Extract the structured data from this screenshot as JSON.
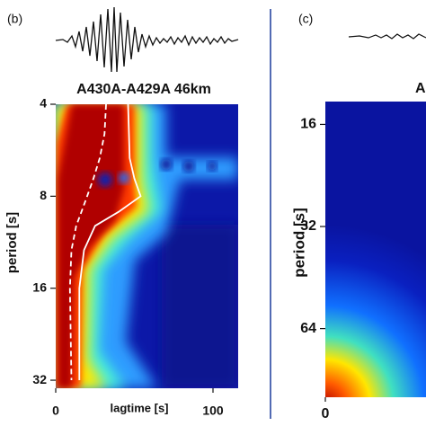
{
  "chart_data": [
    {
      "type": "line",
      "panel_label": "(b)",
      "title": "A430A-A429A 46km",
      "xlabel": "lagtime [s]",
      "ylabel": "period [s]",
      "xlim": [
        0,
        116
      ],
      "xticks": [
        0,
        100
      ],
      "ylim": [
        4,
        34
      ],
      "yticks": [
        4,
        8,
        16,
        32
      ],
      "yscale": "log",
      "series": [
        {
          "color": "#ffffff",
          "dash": false,
          "x": [
            46,
            47,
            50,
            54,
            40,
            25,
            18,
            15,
            15
          ],
          "y": [
            4,
            6,
            7,
            8,
            9,
            10,
            12,
            16,
            32
          ]
        },
        {
          "color": "#ffffff",
          "dash": true,
          "x": [
            32,
            31,
            28,
            24,
            20,
            13,
            10,
            9,
            10
          ],
          "y": [
            4,
            5,
            6,
            7,
            8,
            10,
            12,
            16,
            32
          ]
        }
      ]
    },
    {
      "type": "line",
      "panel_label": "(c)",
      "title": "A",
      "ylabel": "period [s]",
      "xlim": [
        0,
        116
      ],
      "xticks": [
        0
      ],
      "ylim": [
        13.7,
        102
      ],
      "yticks": [
        16,
        32,
        64
      ],
      "yscale": "log",
      "series": []
    }
  ]
}
